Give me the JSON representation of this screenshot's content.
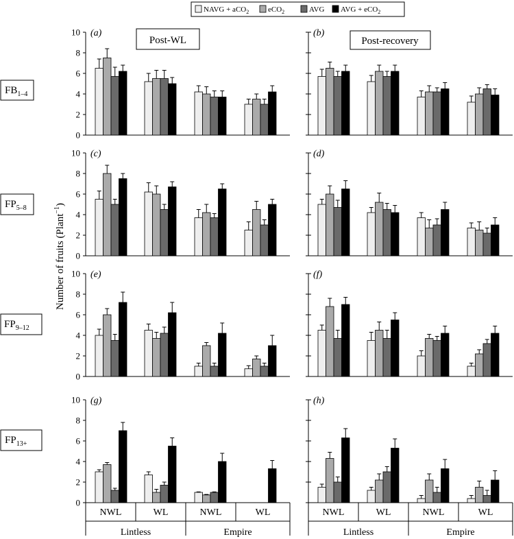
{
  "legend": [
    {
      "label": "NAVG + aCO",
      "sub": "2",
      "color": "#eeeeee"
    },
    {
      "label": "eCO",
      "sub": "2",
      "color": "#aaaaaa"
    },
    {
      "label": "AVG",
      "sub": "",
      "color": "#6a6a6a"
    },
    {
      "label": "AVG + eCO",
      "sub": "2",
      "color": "#000000"
    }
  ],
  "y_axis_label": "Number of fruits (Plant",
  "y_axis_label_sup": "−1",
  "y_axis_label_end": ")",
  "column_titles": [
    "Post-WL",
    "Post-recovery"
  ],
  "row_labels": [
    {
      "main": "FB",
      "sub": "1–4"
    },
    {
      "main": "FP",
      "sub": "5–8"
    },
    {
      "main": "FP",
      "sub": "9–12"
    },
    {
      "main": "FP",
      "sub": "13+"
    }
  ],
  "x_groups": [
    "NWL",
    "WL",
    "NWL",
    "WL"
  ],
  "x_cultivars": [
    "Lintless",
    "Empire"
  ],
  "chart_data": [
    {
      "type": "bar",
      "panel": "(a)",
      "categories": [
        "Lintless NWL",
        "Lintless WL",
        "Empire NWL",
        "Empire WL"
      ],
      "ylim": [
        0,
        10
      ],
      "yticks": [
        0,
        2,
        4,
        6,
        8,
        10
      ],
      "series": [
        {
          "name": "NAVG + aCO2",
          "values": [
            6.5,
            5.2,
            4.2,
            3.0
          ],
          "errors": [
            0.9,
            0.8,
            0.6,
            0.5
          ]
        },
        {
          "name": "eCO2",
          "values": [
            7.5,
            5.5,
            4.0,
            3.5
          ],
          "errors": [
            0.9,
            0.8,
            0.7,
            0.5
          ]
        },
        {
          "name": "AVG",
          "values": [
            5.7,
            5.5,
            3.7,
            3.0
          ],
          "errors": [
            0.9,
            0.8,
            0.6,
            0.5
          ]
        },
        {
          "name": "AVG + eCO2",
          "values": [
            6.2,
            5.0,
            3.7,
            4.2
          ],
          "errors": [
            0.6,
            0.6,
            0.6,
            0.6
          ]
        }
      ]
    },
    {
      "type": "bar",
      "panel": "(b)",
      "categories": [
        "Lintless NWL",
        "Lintless WL",
        "Empire NWL",
        "Empire WL"
      ],
      "ylim": [
        0,
        10
      ],
      "yticks": [
        0,
        2,
        4,
        6,
        8,
        10
      ],
      "series": [
        {
          "name": "NAVG + aCO2",
          "values": [
            5.7,
            5.2,
            3.7,
            3.2
          ],
          "errors": [
            0.7,
            0.6,
            0.6,
            0.6
          ]
        },
        {
          "name": "eCO2",
          "values": [
            6.5,
            6.2,
            4.2,
            4.0
          ],
          "errors": [
            0.6,
            0.6,
            0.6,
            0.6
          ]
        },
        {
          "name": "AVG",
          "values": [
            5.7,
            5.7,
            4.2,
            4.5
          ],
          "errors": [
            0.5,
            0.5,
            0.4,
            0.4
          ]
        },
        {
          "name": "AVG + eCO2",
          "values": [
            6.2,
            6.2,
            4.5,
            3.9
          ],
          "errors": [
            0.6,
            0.6,
            0.6,
            0.6
          ]
        }
      ]
    },
    {
      "type": "bar",
      "panel": "(c)",
      "categories": [
        "Lintless NWL",
        "Lintless WL",
        "Empire NWL",
        "Empire WL"
      ],
      "ylim": [
        0,
        10
      ],
      "yticks": [
        0,
        2,
        4,
        6,
        8,
        10
      ],
      "series": [
        {
          "name": "NAVG + aCO2",
          "values": [
            5.5,
            6.2,
            3.7,
            2.5
          ],
          "errors": [
            0.8,
            0.9,
            0.8,
            0.8
          ]
        },
        {
          "name": "eCO2",
          "values": [
            8.0,
            6.0,
            4.2,
            4.5
          ],
          "errors": [
            0.8,
            0.8,
            0.8,
            0.8
          ]
        },
        {
          "name": "AVG",
          "values": [
            5.0,
            4.5,
            3.7,
            3.0
          ],
          "errors": [
            0.5,
            0.5,
            0.4,
            0.5
          ]
        },
        {
          "name": "AVG + eCO2",
          "values": [
            7.5,
            6.7,
            6.5,
            5.0
          ],
          "errors": [
            0.5,
            0.5,
            0.5,
            0.5
          ]
        }
      ]
    },
    {
      "type": "bar",
      "panel": "(d)",
      "categories": [
        "Lintless NWL",
        "Lintless WL",
        "Empire NWL",
        "Empire WL"
      ],
      "ylim": [
        0,
        10
      ],
      "yticks": [
        0,
        2,
        4,
        6,
        8,
        10
      ],
      "series": [
        {
          "name": "NAVG + aCO2",
          "values": [
            5.0,
            4.2,
            3.7,
            2.7
          ],
          "errors": [
            0.5,
            0.5,
            0.5,
            0.5
          ]
        },
        {
          "name": "eCO2",
          "values": [
            6.0,
            5.2,
            2.7,
            2.5
          ],
          "errors": [
            0.8,
            0.9,
            0.8,
            0.8
          ]
        },
        {
          "name": "AVG",
          "values": [
            4.7,
            4.5,
            3.0,
            2.2
          ],
          "errors": [
            0.7,
            0.6,
            0.6,
            0.5
          ]
        },
        {
          "name": "AVG + eCO2",
          "values": [
            6.5,
            4.2,
            4.5,
            3.0
          ],
          "errors": [
            0.8,
            0.7,
            0.7,
            0.7
          ]
        }
      ]
    },
    {
      "type": "bar",
      "panel": "(e)",
      "categories": [
        "Lintless NWL",
        "Lintless WL",
        "Empire NWL",
        "Empire WL"
      ],
      "ylim": [
        0,
        10
      ],
      "yticks": [
        0,
        2,
        4,
        6,
        8,
        10
      ],
      "series": [
        {
          "name": "NAVG + aCO2",
          "values": [
            4.0,
            4.5,
            1.0,
            0.75
          ],
          "errors": [
            0.6,
            0.6,
            0.3,
            0.3
          ]
        },
        {
          "name": "eCO2",
          "values": [
            6.0,
            3.7,
            3.0,
            1.7
          ],
          "errors": [
            0.6,
            0.6,
            0.3,
            0.3
          ]
        },
        {
          "name": "AVG",
          "values": [
            3.5,
            4.2,
            1.0,
            1.0
          ],
          "errors": [
            0.6,
            0.6,
            0.3,
            0.3
          ]
        },
        {
          "name": "AVG + eCO2",
          "values": [
            7.2,
            6.2,
            4.2,
            3.0
          ],
          "errors": [
            1.0,
            1.0,
            1.0,
            1.0
          ]
        }
      ]
    },
    {
      "type": "bar",
      "panel": "(f)",
      "categories": [
        "Lintless NWL",
        "Lintless WL",
        "Empire NWL",
        "Empire WL"
      ],
      "ylim": [
        0,
        10
      ],
      "yticks": [
        0,
        2,
        4,
        6,
        8,
        10
      ],
      "series": [
        {
          "name": "NAVG + aCO2",
          "values": [
            4.5,
            3.5,
            2.0,
            1.0
          ],
          "errors": [
            0.5,
            0.8,
            0.5,
            0.3
          ]
        },
        {
          "name": "eCO2",
          "values": [
            6.8,
            4.5,
            3.7,
            2.2
          ],
          "errors": [
            0.8,
            0.8,
            0.4,
            0.4
          ]
        },
        {
          "name": "AVG",
          "values": [
            3.7,
            3.7,
            3.5,
            3.2
          ],
          "errors": [
            0.8,
            0.8,
            0.4,
            0.4
          ]
        },
        {
          "name": "AVG + eCO2",
          "values": [
            7.0,
            5.5,
            4.2,
            4.2
          ],
          "errors": [
            0.7,
            0.7,
            0.7,
            0.7
          ]
        }
      ]
    },
    {
      "type": "bar",
      "panel": "(g)",
      "categories": [
        "Lintless NWL",
        "Lintless WL",
        "Empire NWL",
        "Empire WL"
      ],
      "ylim": [
        0,
        10
      ],
      "yticks": [
        0,
        2,
        4,
        6,
        8,
        10
      ],
      "series": [
        {
          "name": "NAVG + aCO2",
          "values": [
            3.0,
            2.7,
            1.0,
            0
          ],
          "errors": [
            0.2,
            0.3,
            0.05,
            0
          ]
        },
        {
          "name": "eCO2",
          "values": [
            3.7,
            1.0,
            0.75,
            0
          ],
          "errors": [
            0.2,
            0.3,
            0.05,
            0
          ]
        },
        {
          "name": "AVG",
          "values": [
            1.2,
            1.7,
            1.0,
            0
          ],
          "errors": [
            0.2,
            0.3,
            0.05,
            0
          ]
        },
        {
          "name": "AVG + eCO2",
          "values": [
            7.0,
            5.5,
            4.0,
            3.3
          ],
          "errors": [
            0.8,
            0.8,
            0.8,
            0.8
          ]
        }
      ]
    },
    {
      "type": "bar",
      "panel": "(h)",
      "categories": [
        "Lintless NWL",
        "Lintless WL",
        "Empire NWL",
        "Empire WL"
      ],
      "ylim": [
        0,
        10
      ],
      "yticks": [
        0,
        2,
        4,
        6,
        8,
        10
      ],
      "series": [
        {
          "name": "NAVG + aCO2",
          "values": [
            1.5,
            1.2,
            0.4,
            0.4
          ],
          "errors": [
            0.3,
            0.3,
            0.3,
            0.3
          ]
        },
        {
          "name": "eCO2",
          "values": [
            4.3,
            2.2,
            2.2,
            1.5
          ],
          "errors": [
            0.6,
            0.6,
            0.6,
            0.6
          ]
        },
        {
          "name": "AVG",
          "values": [
            2.0,
            3.0,
            1.0,
            0.7
          ],
          "errors": [
            0.5,
            0.5,
            0.5,
            0.5
          ]
        },
        {
          "name": "AVG + eCO2",
          "values": [
            6.3,
            5.3,
            3.3,
            2.2
          ],
          "errors": [
            0.9,
            0.9,
            0.9,
            0.9
          ]
        }
      ]
    }
  ]
}
